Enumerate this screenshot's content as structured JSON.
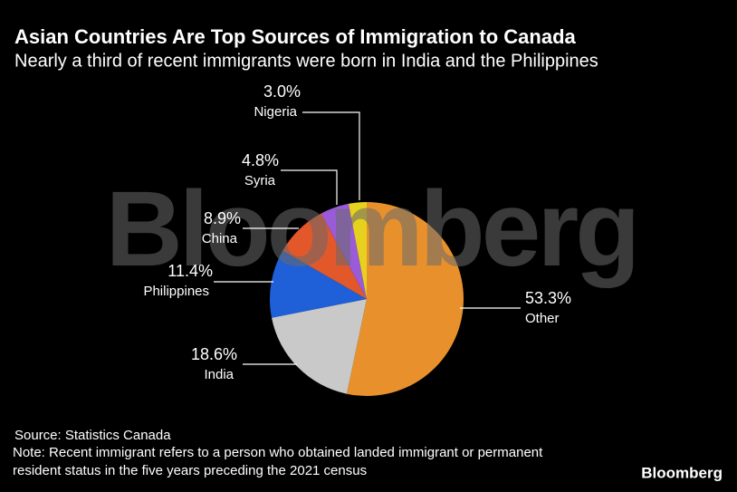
{
  "chart_data": {
    "type": "pie",
    "title": "Asian Countries Are Top Sources of Immigration to Canada",
    "subtitle": "Nearly a third of recent immigrants were born in India and the Philippines",
    "categories": [
      "Other",
      "India",
      "Philippines",
      "China",
      "Syria",
      "Nigeria"
    ],
    "values": [
      53.3,
      18.6,
      11.4,
      8.9,
      4.8,
      3.0
    ],
    "value_labels": [
      "53.3%",
      "18.6%",
      "11.4%",
      "8.9%",
      "4.8%",
      "3.0%"
    ],
    "colors": [
      "#e8912c",
      "#c9c9c9",
      "#1f5fd8",
      "#e2582b",
      "#9a5bd8",
      "#e6d21e"
    ],
    "watermark": "Bloomberg",
    "source": "Source: Statistics Canada",
    "note": "Note: Recent immigrant refers to a person who obtained landed immigrant or permanent resident status in the five years preceding the 2021 census",
    "logo": "Bloomberg"
  }
}
